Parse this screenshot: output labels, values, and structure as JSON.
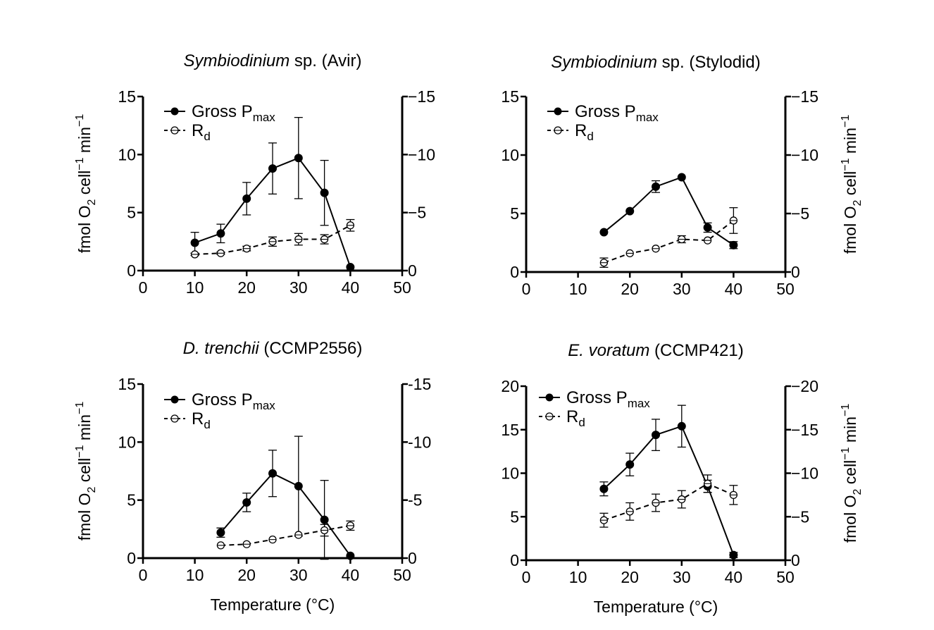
{
  "chart_data": [
    {
      "type": "line",
      "title_parts": [
        {
          "text": "Symbiodinium",
          "italic": true
        },
        {
          "text": " sp. (Avir)",
          "italic": false
        }
      ],
      "xlabel": "",
      "ylabel_left": "fmol O2 cell−1 min−1",
      "ylabel_right": "",
      "xlim": [
        0,
        50
      ],
      "xticks": [
        0,
        10,
        20,
        30,
        40,
        50
      ],
      "ylim_left": [
        0,
        15
      ],
      "yticks_left": [
        0,
        5,
        10,
        15
      ],
      "ytick_labels_left": [
        "0",
        "5",
        "10",
        "15"
      ],
      "ylim_right": [
        0,
        -15
      ],
      "yticks_right": [
        0,
        5,
        10,
        15
      ],
      "ytick_labels_right": [
        "0",
        "−5",
        "−10",
        "−15"
      ],
      "legend_position": "top-left",
      "series": [
        {
          "name": "Gross Pmax",
          "legend_main": "Gross P",
          "legend_sub": "max",
          "marker": "filled",
          "dash": "solid",
          "x": [
            10,
            15,
            20,
            25,
            30,
            35,
            40
          ],
          "y": [
            2.4,
            3.2,
            6.2,
            8.8,
            9.7,
            6.7,
            0.3
          ],
          "err": [
            0.9,
            0.8,
            1.4,
            2.2,
            3.5,
            2.8,
            0
          ]
        },
        {
          "name": "Rd",
          "legend_main": "R",
          "legend_sub": "d",
          "marker": "open",
          "dash": "dashed",
          "x": [
            10,
            15,
            20,
            25,
            30,
            35,
            40
          ],
          "y": [
            1.4,
            1.5,
            1.9,
            2.5,
            2.7,
            2.7,
            3.9
          ],
          "err": [
            0.1,
            0.1,
            0.2,
            0.4,
            0.5,
            0.4,
            0.5
          ]
        }
      ]
    },
    {
      "type": "line",
      "title_parts": [
        {
          "text": "Symbiodinium",
          "italic": true
        },
        {
          "text": " sp. (Stylodid)",
          "italic": false
        }
      ],
      "xlabel": "",
      "ylabel_left": "",
      "ylabel_right": "fmol O2 cell−1 min−1",
      "xlim": [
        0,
        50
      ],
      "xticks": [
        0,
        10,
        20,
        30,
        40,
        50
      ],
      "ylim_left": [
        0,
        15
      ],
      "yticks_left": [
        0,
        5,
        10,
        15
      ],
      "ytick_labels_left": [
        "0",
        "5",
        "10",
        "15"
      ],
      "ylim_right": [
        0,
        -15
      ],
      "yticks_right": [
        0,
        5,
        10,
        15
      ],
      "ytick_labels_right": [
        "0",
        "−5",
        "−10",
        "−15"
      ],
      "legend_position": "top-left",
      "series": [
        {
          "name": "Gross Pmax",
          "legend_main": "Gross P",
          "legend_sub": "max",
          "marker": "filled",
          "dash": "solid",
          "x": [
            15,
            20,
            25,
            30,
            35,
            40
          ],
          "y": [
            3.4,
            5.2,
            7.3,
            8.1,
            3.8,
            2.3
          ],
          "err": [
            0,
            0,
            0.5,
            0,
            0.4,
            0.3
          ]
        },
        {
          "name": "Rd",
          "legend_main": "R",
          "legend_sub": "d",
          "marker": "open",
          "dash": "dashed",
          "x": [
            15,
            20,
            25,
            30,
            35,
            40
          ],
          "y": [
            0.8,
            1.6,
            2.0,
            2.8,
            2.7,
            4.4
          ],
          "err": [
            0.4,
            0,
            0,
            0.3,
            0,
            1.1
          ]
        }
      ]
    },
    {
      "type": "line",
      "title_parts": [
        {
          "text": "D. trenchii",
          "italic": true
        },
        {
          "text": " (CCMP2556)",
          "italic": false
        }
      ],
      "xlabel": "Temperature (°C)",
      "ylabel_left": "fmol O2 cell−1 min−1",
      "ylabel_right": "",
      "xlim": [
        0,
        50
      ],
      "xticks": [
        0,
        10,
        20,
        30,
        40,
        50
      ],
      "ylim_left": [
        0,
        15
      ],
      "yticks_left": [
        0,
        5,
        10,
        15
      ],
      "ytick_labels_left": [
        "0",
        "5",
        "10",
        "15"
      ],
      "ylim_right": [
        0,
        -15
      ],
      "yticks_right": [
        0,
        5,
        10,
        15
      ],
      "ytick_labels_right": [
        "0",
        "-5",
        "-10",
        "-15"
      ],
      "legend_position": "top-left",
      "series": [
        {
          "name": "Gross Pmax",
          "legend_main": "Gross P",
          "legend_sub": "max",
          "marker": "filled",
          "dash": "solid",
          "x": [
            15,
            20,
            25,
            30,
            35,
            40
          ],
          "y": [
            2.2,
            4.8,
            7.3,
            6.2,
            3.3,
            0.2
          ],
          "err": [
            0.4,
            0.8,
            2.0,
            4.3,
            3.4,
            0
          ]
        },
        {
          "name": "Rd",
          "legend_main": "R",
          "legend_sub": "d",
          "marker": "open",
          "dash": "dashed",
          "x": [
            15,
            20,
            25,
            30,
            35,
            40
          ],
          "y": [
            1.1,
            1.2,
            1.6,
            2.0,
            2.4,
            2.8
          ],
          "err": [
            0,
            0,
            0,
            0,
            0.5,
            0.4
          ]
        }
      ]
    },
    {
      "type": "line",
      "title_parts": [
        {
          "text": "E. voratum",
          "italic": true
        },
        {
          "text": " (CCMP421)",
          "italic": false
        }
      ],
      "xlabel": "Temperature (°C)",
      "ylabel_left": "",
      "ylabel_right": "fmol O2 cell−1 min−1",
      "xlim": [
        0,
        50
      ],
      "xticks": [
        0,
        10,
        20,
        30,
        40,
        50
      ],
      "ylim_left": [
        0,
        20
      ],
      "yticks_left": [
        0,
        5,
        10,
        15,
        20
      ],
      "ytick_labels_left": [
        "0",
        "5",
        "10",
        "15",
        "20"
      ],
      "ylim_right": [
        0,
        -20
      ],
      "yticks_right": [
        0,
        5,
        10,
        15,
        20
      ],
      "ytick_labels_right": [
        "0",
        "−5",
        "−10",
        "−15",
        "−20"
      ],
      "legend_position": "top-left",
      "series": [
        {
          "name": "Gross Pmax",
          "legend_main": "Gross P",
          "legend_sub": "max",
          "marker": "filled",
          "dash": "solid",
          "x": [
            15,
            20,
            25,
            30,
            35,
            40
          ],
          "y": [
            8.2,
            11.0,
            14.4,
            15.4,
            8.5,
            0.6
          ],
          "err": [
            0.8,
            1.3,
            1.8,
            2.4,
            0.7,
            0.3
          ]
        },
        {
          "name": "Rd",
          "legend_main": "R",
          "legend_sub": "d",
          "marker": "open",
          "dash": "dashed",
          "x": [
            15,
            20,
            25,
            30,
            35,
            40
          ],
          "y": [
            4.6,
            5.6,
            6.6,
            7.0,
            8.8,
            7.5
          ],
          "err": [
            0.8,
            1.0,
            1.0,
            1.0,
            1.0,
            1.1
          ]
        }
      ]
    }
  ]
}
